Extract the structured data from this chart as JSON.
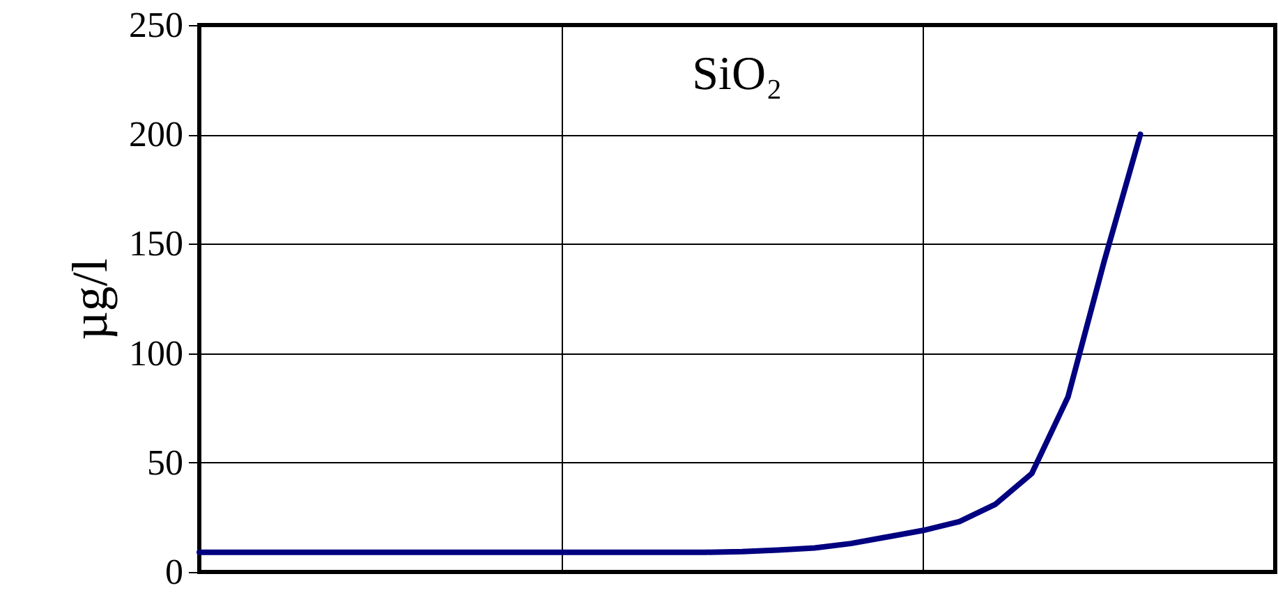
{
  "chart_data": {
    "type": "line",
    "title": "SiO₂",
    "ylabel": "µg/l",
    "categories": [
      null,
      null,
      null,
      null,
      null,
      null,
      null,
      null,
      null,
      null,
      null,
      null,
      null,
      null,
      null,
      null,
      null,
      null,
      null,
      null,
      null,
      null,
      null,
      null,
      null,
      null,
      null
    ],
    "series": [
      {
        "color": "#000080",
        "values": [
          9,
          9,
          9,
          9,
          9,
          9,
          9,
          9,
          9,
          9,
          9,
          9,
          9,
          9,
          9,
          9.3,
          10,
          11,
          13,
          16,
          19,
          23,
          31,
          45,
          80,
          142,
          200
        ]
      }
    ],
    "ylim": [
      0,
      250
    ],
    "yticks": [
      0,
      50,
      100,
      150,
      200,
      250
    ],
    "grid": true,
    "tick_labels": "y",
    "marker": "none",
    "line_style": "solid"
  }
}
